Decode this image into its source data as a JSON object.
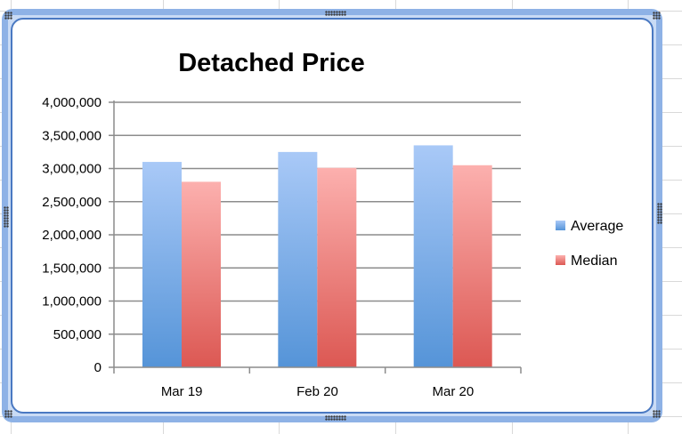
{
  "chart_data": {
    "type": "bar",
    "title": "Detached Price",
    "xlabel": "",
    "ylabel": "",
    "categories": [
      "Mar 19",
      "Feb 20",
      "Mar 20"
    ],
    "series": [
      {
        "name": "Average",
        "values": [
          3100000,
          3250000,
          3350000
        ]
      },
      {
        "name": "Median",
        "values": [
          2800000,
          3010000,
          3050000
        ]
      }
    ],
    "ylim": [
      0,
      4000000
    ],
    "yticks": [
      "0",
      "500,000",
      "1,000,000",
      "1,500,000",
      "2,000,000",
      "2,500,000",
      "3,000,000",
      "3,500,000",
      "4,000,000"
    ],
    "grid": true,
    "legend": "right",
    "colors": {
      "Average": {
        "top": "#a9c9f7",
        "bottom": "#5594d8"
      },
      "Median": {
        "top": "#fcb0ae",
        "bottom": "#dc5853"
      }
    }
  }
}
